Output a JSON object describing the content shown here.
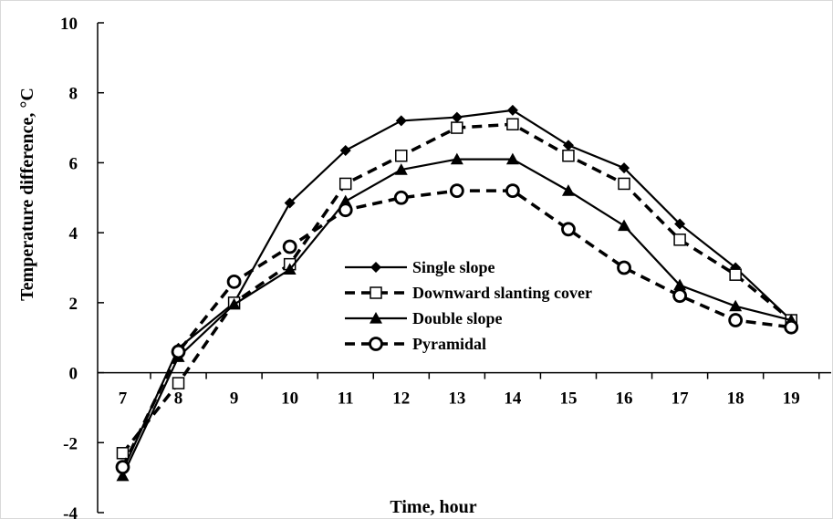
{
  "chart_data": {
    "type": "line",
    "xlabel": "Time, hour",
    "ylabel": "Temperature difference, °C",
    "x": [
      7,
      8,
      9,
      10,
      11,
      12,
      13,
      14,
      15,
      16,
      17,
      18,
      19
    ],
    "xlim": [
      6.55,
      19.75
    ],
    "ylim": [
      -4,
      10
    ],
    "y_ticks": [
      -4,
      -2,
      0,
      2,
      4,
      6,
      8,
      10
    ],
    "x_ticks": [
      7,
      8,
      9,
      10,
      11,
      12,
      13,
      14,
      15,
      16,
      17,
      18,
      19
    ],
    "grid": false,
    "legend_placement": "center",
    "series": [
      {
        "name": "Single slope",
        "values": [
          -2.8,
          0.7,
          2.0,
          4.85,
          6.35,
          7.2,
          7.3,
          7.5,
          6.5,
          5.85,
          4.25,
          3.0,
          1.5
        ],
        "line_style": "solid",
        "marker": "diamond",
        "color": "#000000"
      },
      {
        "name": "Downward slanting cover",
        "values": [
          -2.3,
          -0.3,
          2.0,
          3.1,
          5.4,
          6.2,
          7.0,
          7.1,
          6.2,
          5.4,
          3.8,
          2.8,
          1.5
        ],
        "line_style": "dashed",
        "marker": "square-open",
        "color": "#000000"
      },
      {
        "name": "Double slope",
        "values": [
          -2.95,
          0.45,
          1.95,
          2.95,
          4.9,
          5.8,
          6.1,
          6.1,
          5.2,
          4.2,
          2.5,
          1.9,
          1.5
        ],
        "line_style": "solid",
        "marker": "triangle",
        "color": "#000000"
      },
      {
        "name": "Pyramidal",
        "values": [
          -2.7,
          0.6,
          2.6,
          3.6,
          4.65,
          5.0,
          5.2,
          5.2,
          4.1,
          3.0,
          2.2,
          1.5,
          1.3
        ],
        "line_style": "dashed",
        "marker": "circle-open",
        "color": "#000000"
      }
    ]
  }
}
